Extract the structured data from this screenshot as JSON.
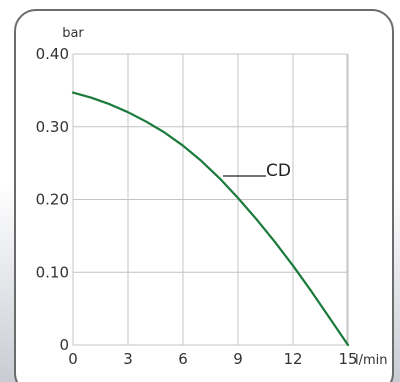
{
  "chart_data": {
    "type": "line",
    "title": "",
    "x_unit": "l/min",
    "y_unit": "bar",
    "xlim": [
      0,
      15.5
    ],
    "ylim": [
      0,
      0.4
    ],
    "x_ticks": [
      "0",
      "3",
      "6",
      "9",
      "12",
      "15"
    ],
    "y_ticks": [
      "0",
      "0.10",
      "0.20",
      "0.30",
      "0.40"
    ],
    "grid": true,
    "series": [
      {
        "name": "CD",
        "color": "#1a7a3a",
        "x": [
          0,
          1,
          2,
          3,
          4,
          5,
          6,
          7,
          8,
          9,
          10,
          11,
          12,
          13,
          14,
          15
        ],
        "y": [
          0.347,
          0.34,
          0.331,
          0.32,
          0.307,
          0.292,
          0.274,
          0.253,
          0.229,
          0.202,
          0.173,
          0.142,
          0.109,
          0.074,
          0.037,
          0.0
        ]
      }
    ],
    "annotations": [
      {
        "text": "CD"
      }
    ]
  }
}
